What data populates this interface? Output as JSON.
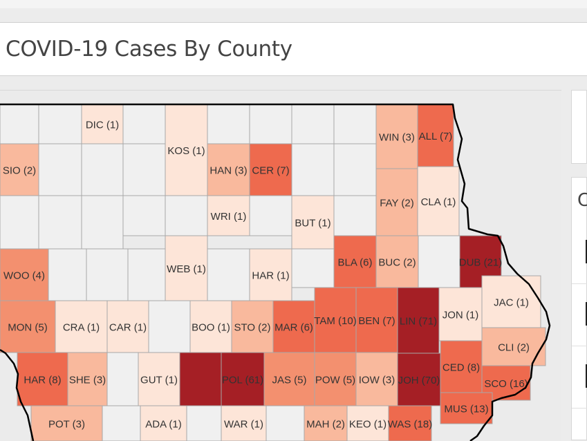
{
  "header": {
    "title": "COVID-19 Cases By County"
  },
  "right_panel": {
    "partial_text": "C"
  },
  "colors": {
    "zero": "#f0f0f0",
    "one": "#fde5d8",
    "low": "#f9b99d",
    "mid": "#f3906f",
    "high": "#ee6a4e",
    "highest": "#a51f25",
    "border": "#a8a8a8",
    "state_outline": "#000000"
  },
  "counties": [
    {
      "label": "DIC (1)",
      "cases": 1
    },
    {
      "label": "KOS (1)",
      "cases": 1
    },
    {
      "label": "WIN (3)",
      "cases": 3
    },
    {
      "label": "ALL (7)",
      "cases": 7
    },
    {
      "label": "SIO (2)",
      "cases": 2
    },
    {
      "label": "HAN (3)",
      "cases": 3
    },
    {
      "label": "CER (7)",
      "cases": 7
    },
    {
      "label": "FAY (2)",
      "cases": 2
    },
    {
      "label": "CLA (1)",
      "cases": 1
    },
    {
      "label": "WRI (1)",
      "cases": 1
    },
    {
      "label": "BUT (1)",
      "cases": 1
    },
    {
      "label": "BLA (6)",
      "cases": 6
    },
    {
      "label": "BUC (2)",
      "cases": 2
    },
    {
      "label": "DUB (21)",
      "cases": 21
    },
    {
      "label": "WOO (4)",
      "cases": 4
    },
    {
      "label": "WEB (1)",
      "cases": 1
    },
    {
      "label": "HAR (1)",
      "cases": 1
    },
    {
      "label": "MON (5)",
      "cases": 5
    },
    {
      "label": "CRA (1)",
      "cases": 1
    },
    {
      "label": "CAR (1)",
      "cases": 1
    },
    {
      "label": "BOO (1)",
      "cases": 1
    },
    {
      "label": "STO (2)",
      "cases": 2
    },
    {
      "label": "MAR (6)",
      "cases": 6
    },
    {
      "label": "TAM (10)",
      "cases": 10
    },
    {
      "label": "BEN (7)",
      "cases": 7
    },
    {
      "label": "LIN (71)",
      "cases": 71
    },
    {
      "label": "JON (1)",
      "cases": 1
    },
    {
      "label": "JAC (1)",
      "cases": 1
    },
    {
      "label": "CLI (2)",
      "cases": 2
    },
    {
      "label": "HAR (8)",
      "cases": 8
    },
    {
      "label": "SHE (3)",
      "cases": 3
    },
    {
      "label": "GUT (1)",
      "cases": 1
    },
    {
      "label": "POL (61)",
      "cases": 61
    },
    {
      "label": "JAS (5)",
      "cases": 5
    },
    {
      "label": "POW (5)",
      "cases": 5
    },
    {
      "label": "IOW (3)",
      "cases": 3
    },
    {
      "label": "JOH (70)",
      "cases": 70
    },
    {
      "label": "CED (8)",
      "cases": 8
    },
    {
      "label": "SCO (16)",
      "cases": 16
    },
    {
      "label": "MUS (13)",
      "cases": 13
    },
    {
      "label": "POT (3)",
      "cases": 3
    },
    {
      "label": "ADA (1)",
      "cases": 1
    },
    {
      "label": "WAR (1)",
      "cases": 1
    },
    {
      "label": "MAH (2)",
      "cases": 2
    },
    {
      "label": "KEO (1)",
      "cases": 1
    },
    {
      "label": "WAS (18)",
      "cases": 18
    }
  ]
}
